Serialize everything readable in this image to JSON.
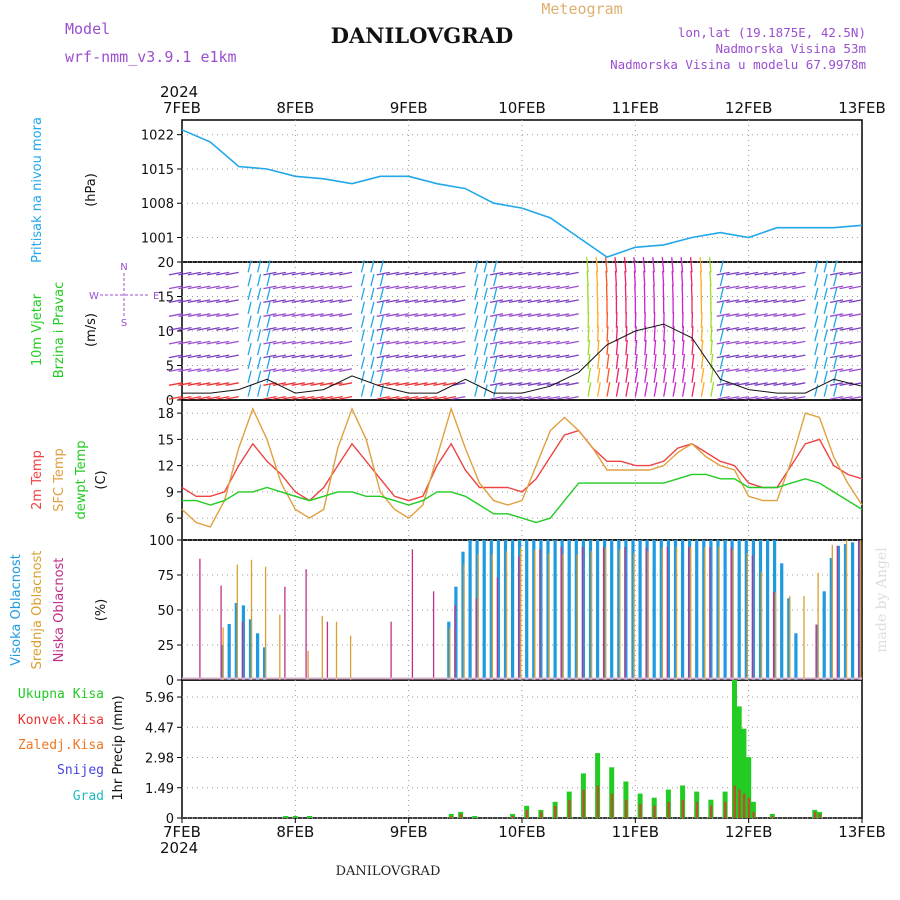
{
  "header": {
    "model_label": "Model",
    "model_name": "wrf-nmm_v3.9.1  e1km",
    "station": "DANILOVGRAD",
    "product": "Meteogram",
    "lonlat": "lon,lat (19.1875E, 42.5N)",
    "elevation": "Nadmorska Visina 53m",
    "model_elevation": "Nadmorska Visina u modelu 67.9978m"
  },
  "footer": {
    "station": "DANILOVGRAD",
    "credit": "made by Angel"
  },
  "time_axis": {
    "year": "2024",
    "ticks": [
      "7FEB",
      "8FEB",
      "9FEB",
      "10FEB",
      "11FEB",
      "12FEB",
      "13FEB"
    ]
  },
  "colors": {
    "pressure": "#22a7e8",
    "t2m": "#ee4444",
    "sfc": "#e0a040",
    "dew": "#22cc22",
    "high_cloud": "#1e9be0",
    "mid_cloud": "#d8a030",
    "low_cloud": "#c0308a",
    "total_precip": "#22cc22",
    "conv_precip": "#ee3333",
    "frz_precip": "#ee7722",
    "snow": "#4444dd",
    "hail": "#22bbbb",
    "wind_label": "#22cc22",
    "purple": "#9b4fd0"
  },
  "labels": {
    "pressure_name": "Pritisak na nivou mora",
    "pressure_unit": "(hPa)",
    "wind_name1": "10m Vjetar",
    "wind_name2": "Brzina i Pravac",
    "wind_unit": "(m/s)",
    "temp_2m": "2m Temp",
    "temp_sfc": "SFC Temp",
    "temp_dew": "dewpt Temp",
    "temp_unit": "(C)",
    "cloud_high": "Visoka Oblacnost",
    "cloud_mid": "Srednja Oblacnost",
    "cloud_low": "Niska Oblacnost",
    "cloud_unit": "(%)",
    "precip_total": "Ukupna Kisa",
    "precip_conv": "Konvek.Kisa",
    "precip_frz": "Zaledj.Kisa",
    "precip_snow": "Snijeg",
    "precip_hail": "Grad",
    "precip_unit": "1hr Precip (mm)"
  },
  "compass": {
    "n": "N",
    "s": "S",
    "e": "E",
    "w": "W"
  },
  "chart_data": [
    {
      "type": "line",
      "name": "pressure",
      "ylim": [
        996,
        1025
      ],
      "yticks": [
        "1001",
        "1008",
        "1015",
        "1022"
      ],
      "x": [
        0,
        6,
        12,
        18,
        24,
        30,
        36,
        42,
        48,
        54,
        60,
        66,
        72,
        78,
        84,
        90,
        96,
        102,
        108,
        114,
        120,
        126,
        132,
        138,
        144
      ],
      "series": [
        {
          "values": [
            1023,
            1020.5,
            1015.5,
            1015,
            1013.5,
            1013,
            1012,
            1013.5,
            1013.5,
            1012,
            1011,
            1008,
            1007,
            1005,
            1001,
            997,
            999,
            999.5,
            1001,
            1002,
            1001,
            1003,
            1003,
            1003,
            1003.5
          ]
        }
      ]
    },
    {
      "type": "scatter",
      "name": "wind",
      "ylim": [
        0,
        20
      ],
      "yticks": [
        "0",
        "5",
        "10",
        "15",
        "20"
      ],
      "x": [
        0,
        6,
        12,
        18,
        24,
        30,
        36,
        42,
        48,
        54,
        60,
        66,
        72,
        78,
        84,
        90,
        96,
        102,
        108,
        114,
        120,
        126,
        132,
        138,
        144
      ],
      "series": [
        {
          "name": "speed",
          "values": [
            1,
            1,
            1.5,
            3,
            1,
            1.5,
            3.5,
            2,
            1,
            1,
            3,
            1,
            1,
            2,
            4,
            8,
            10,
            11,
            9,
            3,
            1.5,
            1,
            1,
            3,
            2
          ]
        }
      ]
    },
    {
      "type": "line",
      "name": "temperature",
      "ylim": [
        3.5,
        19.5
      ],
      "yticks": [
        "6",
        "9",
        "12",
        "15",
        "18"
      ],
      "x": [
        0,
        3,
        6,
        9,
        12,
        15,
        18,
        21,
        24,
        27,
        30,
        33,
        36,
        39,
        42,
        45,
        48,
        51,
        54,
        57,
        60,
        63,
        66,
        69,
        72,
        75,
        78,
        81,
        84,
        87,
        90,
        93,
        96,
        99,
        102,
        105,
        108,
        111,
        114,
        117,
        120,
        123,
        126,
        129,
        132,
        135,
        138,
        141,
        144
      ],
      "series": [
        {
          "name": "2m Temp",
          "values": [
            9.5,
            8.5,
            8.5,
            9,
            12,
            14.5,
            12.5,
            11,
            9,
            8,
            9.5,
            12,
            14.5,
            12.5,
            10.5,
            8.5,
            8,
            8.5,
            12,
            14.5,
            11.5,
            9.5,
            9.5,
            9.5,
            9,
            10.5,
            13,
            15.5,
            16,
            14,
            12.5,
            12.5,
            12,
            12,
            12.5,
            14,
            14.5,
            13.5,
            12.5,
            12,
            10,
            9.5,
            9.5,
            12,
            14.5,
            15,
            12,
            11,
            10.5
          ]
        },
        {
          "name": "SFC Temp",
          "values": [
            7,
            5.5,
            5,
            8,
            14,
            18.5,
            15,
            10,
            7,
            6,
            7,
            14,
            18.5,
            15,
            9,
            7,
            6,
            7.5,
            13,
            18.5,
            14,
            10,
            8,
            7.5,
            8,
            12,
            16,
            17.5,
            16,
            14,
            11.5,
            11.5,
            11.5,
            11.5,
            12,
            13.5,
            14.5,
            13,
            12,
            11.5,
            8.5,
            8,
            8,
            12.5,
            18,
            17.5,
            13,
            10,
            7.5
          ]
        },
        {
          "name": "dewpt Temp",
          "values": [
            8,
            8,
            7.5,
            8,
            9,
            9,
            9.5,
            9,
            8.5,
            8,
            8.5,
            9,
            9,
            8.5,
            8.5,
            8,
            7.5,
            8,
            9,
            9,
            8.5,
            7.5,
            6.5,
            6.5,
            6,
            5.5,
            6,
            8,
            10,
            10,
            10,
            10,
            10,
            10,
            10,
            10.5,
            11,
            11,
            10.5,
            10.5,
            9.5,
            9.5,
            9.5,
            10,
            10.5,
            10,
            9,
            8,
            7
          ]
        }
      ]
    },
    {
      "type": "bar",
      "name": "cloud cover",
      "ylim": [
        0,
        100
      ],
      "yticks": [
        "0",
        "25",
        "50",
        "75",
        "100"
      ],
      "x": [
        0,
        6,
        12,
        18,
        24,
        30,
        36,
        42,
        48,
        54,
        60,
        66,
        72,
        78,
        84,
        90,
        96,
        102,
        108,
        114,
        120,
        126,
        132,
        138,
        144
      ],
      "series": [
        {
          "name": "Visoka Oblacnost",
          "values": [
            0,
            0,
            60,
            20,
            0,
            0,
            0,
            0,
            0,
            0,
            100,
            100,
            100,
            100,
            100,
            100,
            100,
            100,
            100,
            100,
            100,
            100,
            0,
            95,
            100
          ]
        },
        {
          "name": "Srednja Oblacnost",
          "values": [
            0,
            0,
            90,
            80,
            0,
            50,
            30,
            0,
            0,
            0,
            90,
            90,
            95,
            90,
            90,
            95,
            90,
            95,
            95,
            95,
            90,
            60,
            60,
            100,
            100
          ]
        },
        {
          "name": "Niska Oblacnost",
          "values": [
            100,
            80,
            50,
            0,
            100,
            50,
            0,
            0,
            100,
            60,
            50,
            70,
            90,
            95,
            95,
            95,
            95,
            95,
            95,
            95,
            95,
            60,
            0,
            95,
            100
          ]
        }
      ]
    },
    {
      "type": "bar",
      "name": "precipitation",
      "ylim": [
        0,
        6.8
      ],
      "yticks": [
        "0",
        "1.49",
        "2.98",
        "4.47",
        "5.96"
      ],
      "x": [
        22,
        24,
        27,
        57,
        59,
        62,
        70,
        73,
        76,
        79,
        82,
        85,
        88,
        91,
        94,
        97,
        100,
        103,
        106,
        109,
        112,
        115,
        117,
        118,
        119,
        120,
        121,
        125,
        134,
        135
      ],
      "series": [
        {
          "name": "Ukupna Kisa",
          "values": [
            0.1,
            0.1,
            0.1,
            0.2,
            0.3,
            0.1,
            0.2,
            0.6,
            0.4,
            0.8,
            1.3,
            2.2,
            3.2,
            2.5,
            1.8,
            1.2,
            1.0,
            1.4,
            1.6,
            1.3,
            0.9,
            1.3,
            6.8,
            5.5,
            4.4,
            3.0,
            0.8,
            0.2,
            0.4,
            0.3
          ]
        },
        {
          "name": "Konvek.Kisa",
          "values": [
            0,
            0,
            0,
            0.1,
            0.2,
            0,
            0.1,
            0.4,
            0.3,
            0.6,
            0.9,
            1.4,
            1.6,
            1.2,
            0.9,
            0.7,
            0.6,
            0.8,
            0.9,
            0.8,
            0.6,
            0.8,
            1.6,
            1.4,
            1.2,
            1.0,
            0.3,
            0.1,
            0.3,
            0.2
          ]
        }
      ]
    }
  ]
}
